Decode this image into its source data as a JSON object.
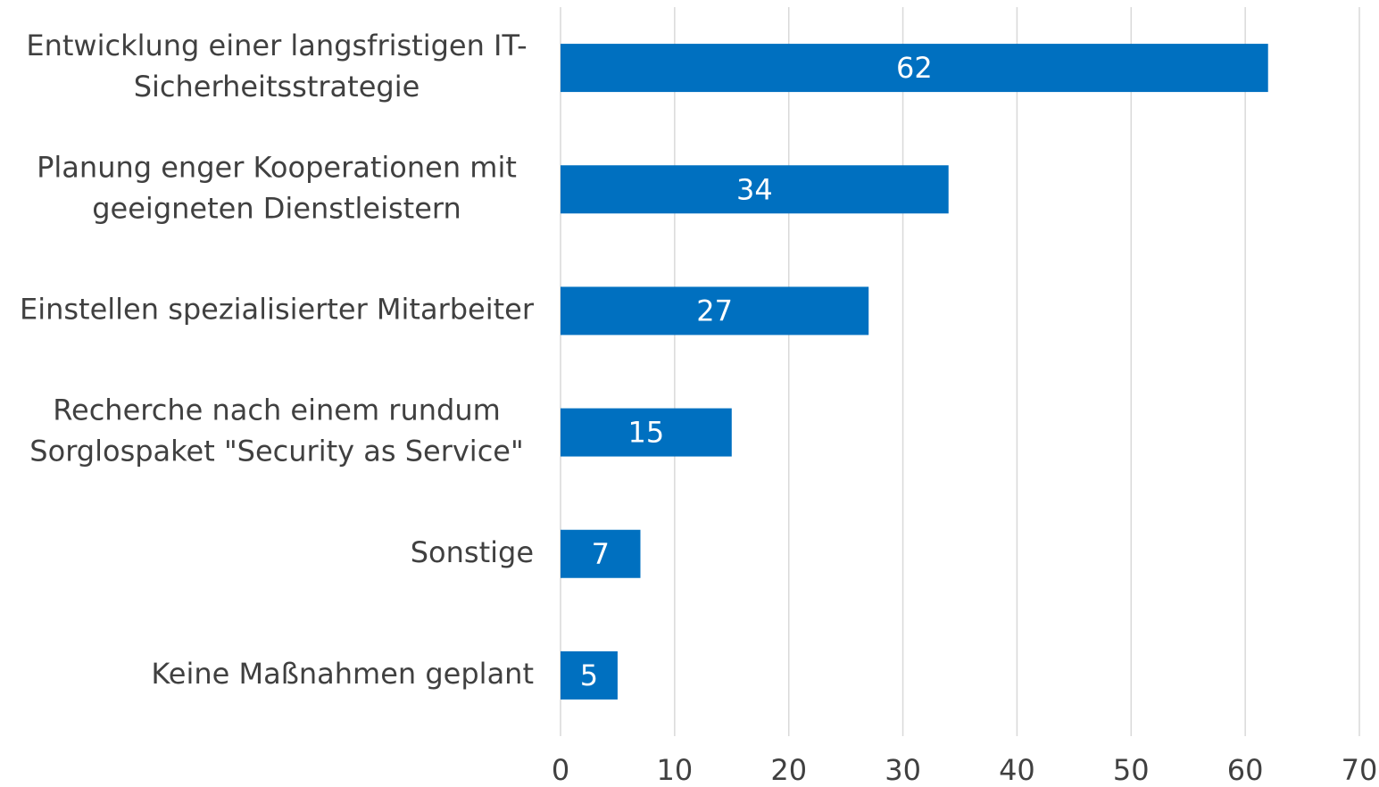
{
  "chart_data": {
    "type": "bar",
    "orientation": "horizontal",
    "categories": [
      "Entwicklung einer langsfristigen IT-\nSicherheitsstrategie",
      "Planung enger Kooperationen mit\ngeeigneten Dienstleistern",
      "Einstellen spezialisierter Mitarbeiter",
      "Recherche nach einem rundum\nSorglospaket \"Security as Service\"",
      "Sonstige",
      "Keine Maßnahmen geplant"
    ],
    "values": [
      62,
      34,
      27,
      15,
      7,
      5
    ],
    "color": "#0070c0",
    "xlim": [
      0,
      70
    ],
    "xticks": [
      0,
      10,
      20,
      30,
      40,
      50,
      60,
      70
    ],
    "grid": true
  }
}
